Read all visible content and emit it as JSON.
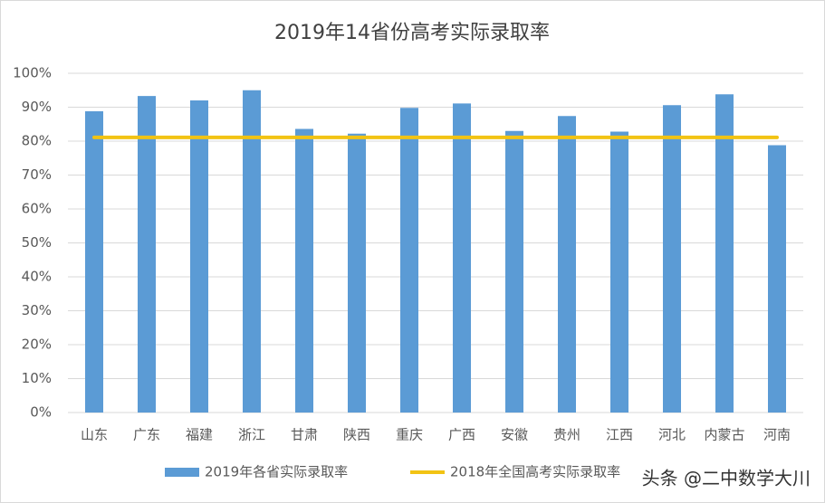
{
  "chart_data": {
    "type": "bar",
    "title": "2019年14省份高考实际录取率",
    "categories": [
      "山东",
      "广东",
      "福建",
      "浙江",
      "甘肃",
      "陕西",
      "重庆",
      "广西",
      "安徽",
      "贵州",
      "江西",
      "河北",
      "内蒙古",
      "河南"
    ],
    "series": [
      {
        "name": "2019年各省实际录取率",
        "type": "bar",
        "color": "#5b9bd5",
        "values": [
          88.8,
          93.3,
          92.0,
          95.0,
          83.6,
          82.2,
          89.8,
          91.1,
          83.0,
          87.4,
          82.8,
          90.6,
          93.8,
          78.8
        ]
      },
      {
        "name": "2018年全国高考实际录取率",
        "type": "line",
        "color": "#f2c314",
        "values": [
          81.1,
          81.1,
          81.1,
          81.1,
          81.1,
          81.1,
          81.1,
          81.1,
          81.1,
          81.1,
          81.1,
          81.1,
          81.1,
          81.1
        ]
      }
    ],
    "ylim": [
      0,
      100
    ],
    "yticks": [
      {
        "value": 0,
        "label": "0%"
      },
      {
        "value": 10,
        "label": "10%"
      },
      {
        "value": 20,
        "label": "20%"
      },
      {
        "value": 30,
        "label": "30%"
      },
      {
        "value": 40,
        "label": "40%"
      },
      {
        "value": 50,
        "label": "50%"
      },
      {
        "value": 60,
        "label": "60%"
      },
      {
        "value": 70,
        "label": "70%"
      },
      {
        "value": 80,
        "label": "80%"
      },
      {
        "value": 90,
        "label": "90%"
      },
      {
        "value": 100,
        "label": "100%"
      }
    ],
    "grid": true,
    "legend": "bottom",
    "watermark": "头条 @二中数学大川"
  }
}
